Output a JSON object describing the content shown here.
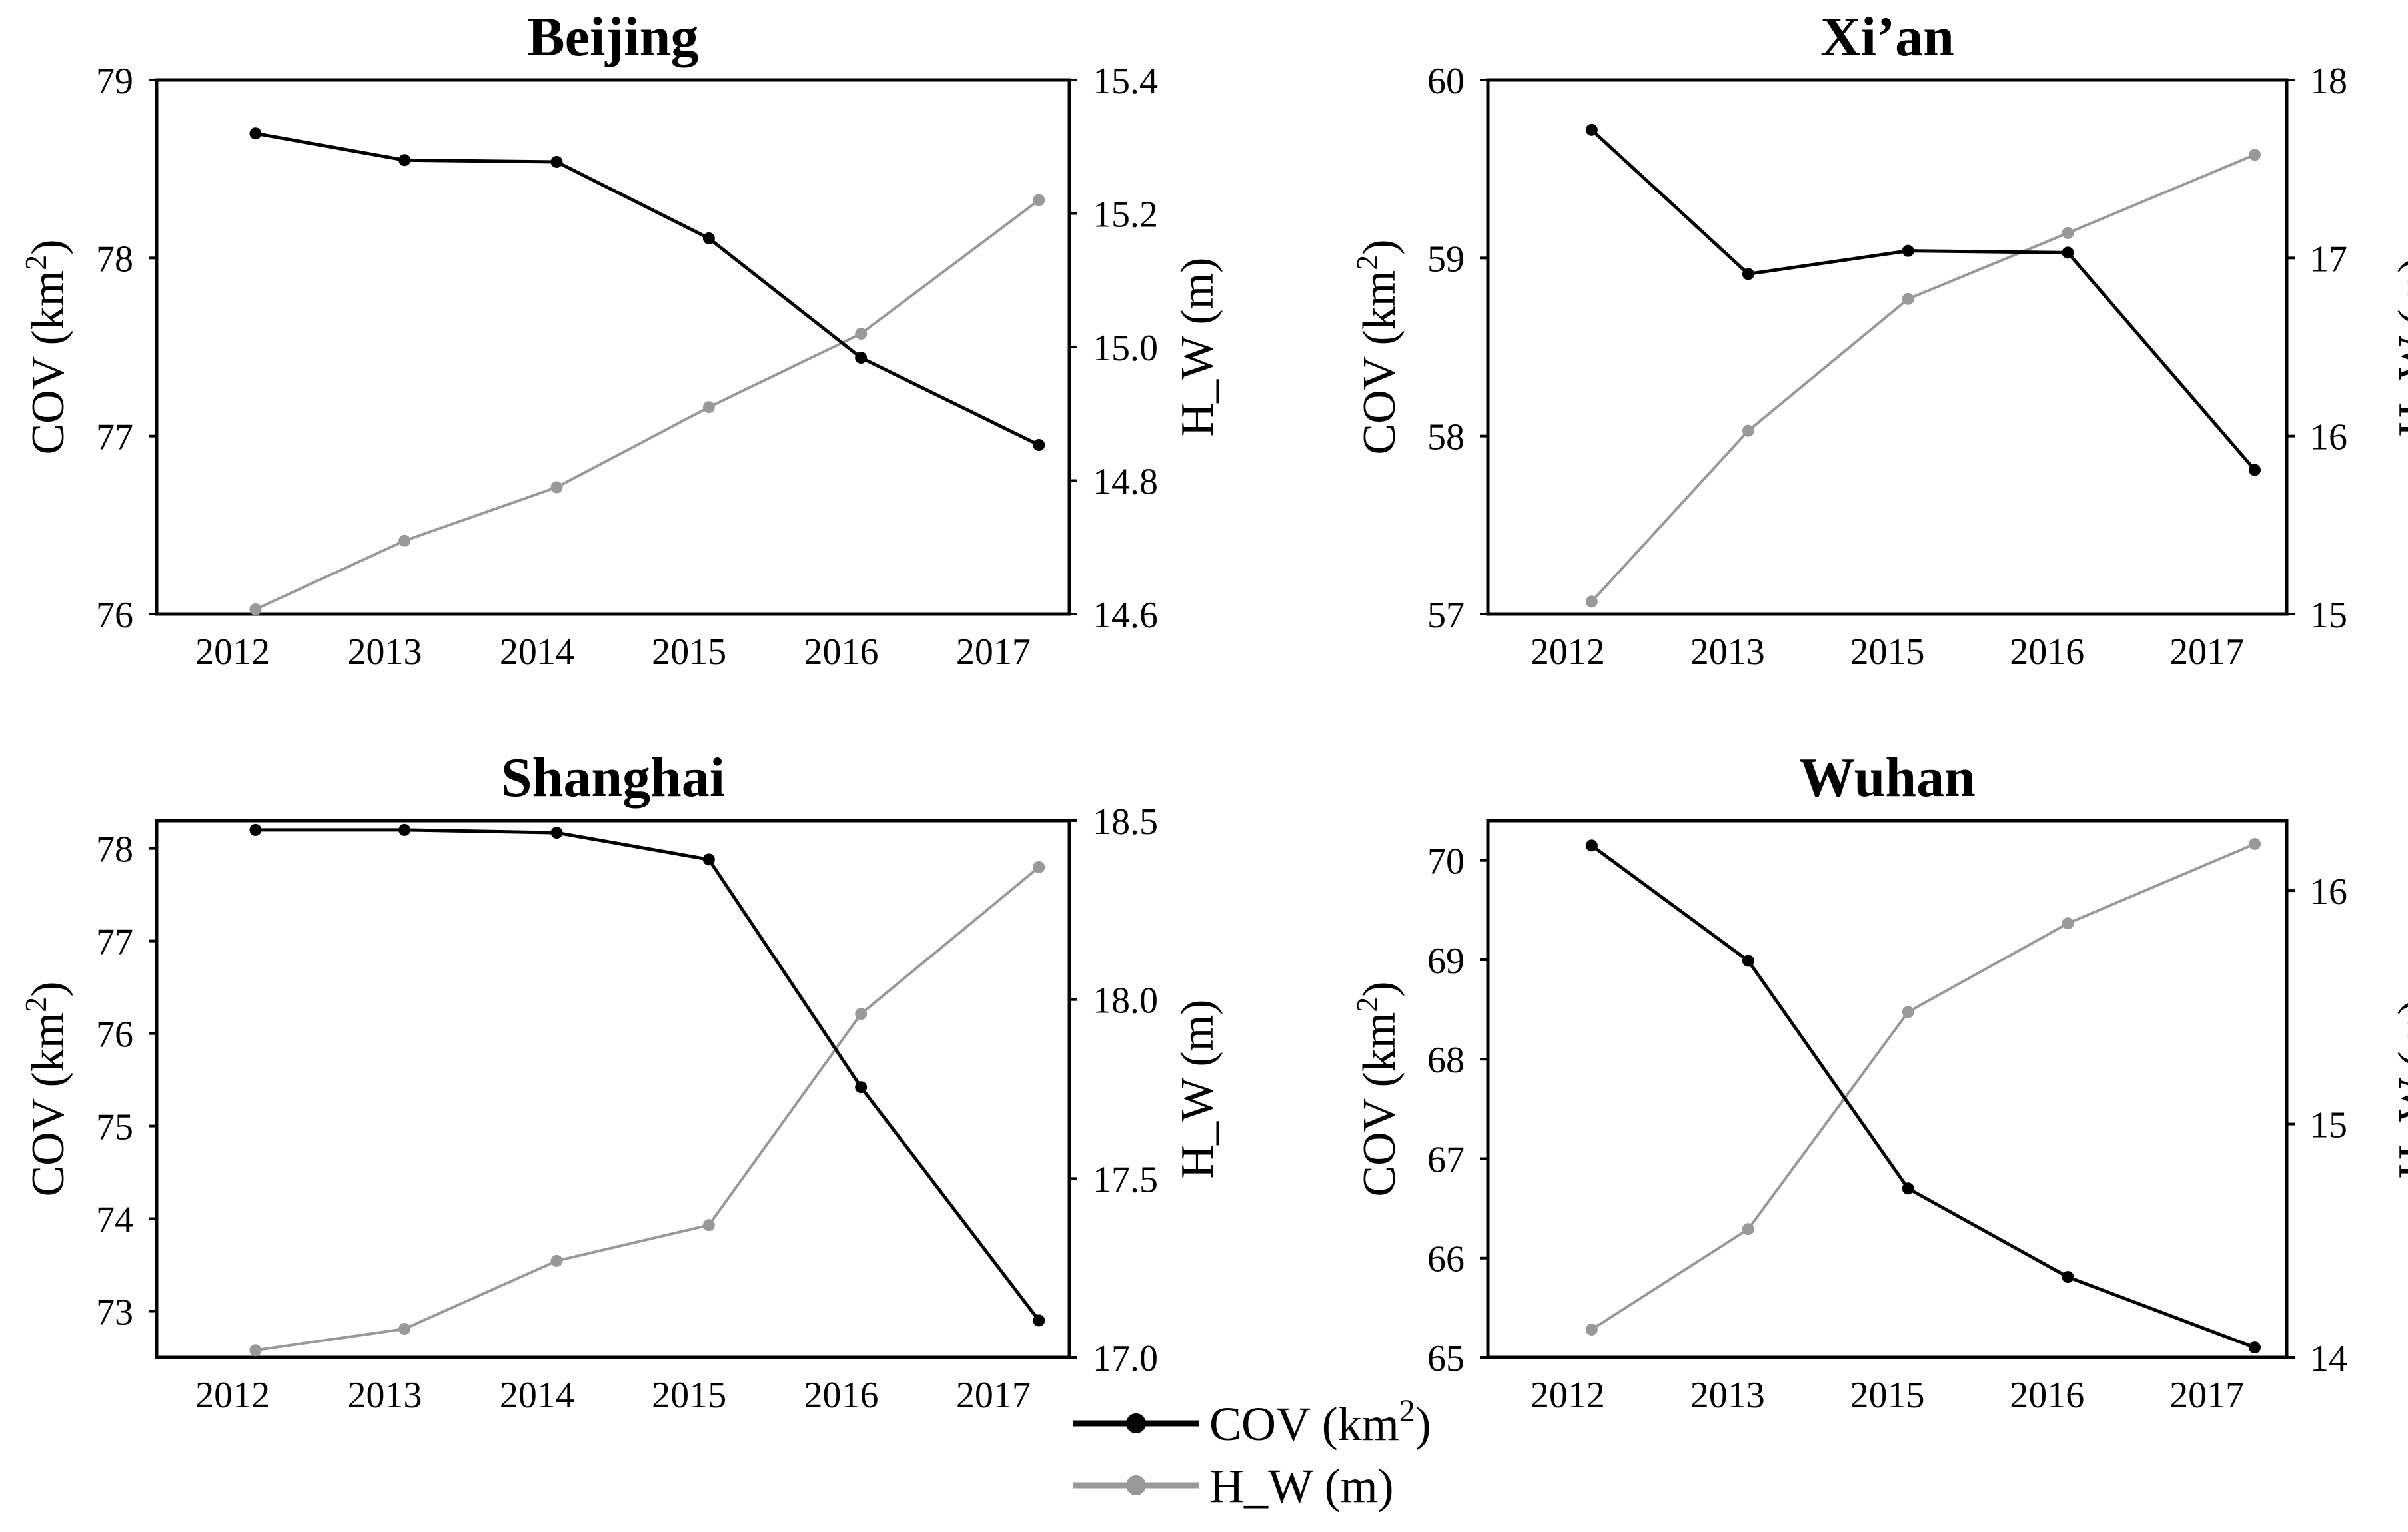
{
  "legend": {
    "items": [
      {
        "label": "COV (km",
        "sup": "2",
        "tail": ")",
        "color": "#000000"
      },
      {
        "label": "H_W (m)",
        "sup": "",
        "tail": "",
        "color": "#999999"
      }
    ]
  },
  "colors": {
    "cov": "#000000",
    "hw": "#999999"
  },
  "chart_data": [
    {
      "type": "line",
      "title": "Beijing",
      "categories": [
        "2012",
        "2013",
        "2014",
        "2015",
        "2016",
        "2017"
      ],
      "ylabel_left": "COV (km",
      "ylabel_left_sup": "2",
      "ylabel_left_tail": ")",
      "ylabel_right": "H_W (m)",
      "ylim_left": [
        76,
        79
      ],
      "yticks_left": [
        "76",
        "77",
        "78",
        "79"
      ],
      "ylim_right": [
        14.6,
        15.4
      ],
      "yticks_right": [
        "14.6",
        "14.8",
        "15.0",
        "15.2",
        "15.4"
      ],
      "series": [
        {
          "name": "COV (km2)",
          "axis": "left",
          "x": [
            0.15,
            1.13,
            2.13,
            3.13,
            4.13,
            5.3
          ],
          "values": [
            78.7,
            78.55,
            78.54,
            78.11,
            77.44,
            76.95
          ]
        },
        {
          "name": "H_W (m)",
          "axis": "right",
          "x": [
            0.15,
            1.13,
            2.13,
            3.13,
            4.13,
            5.3
          ],
          "values": [
            14.607,
            14.71,
            14.79,
            14.91,
            15.02,
            15.22
          ]
        }
      ]
    },
    {
      "type": "line",
      "title": "Xi’an",
      "categories": [
        "2012",
        "2013",
        "2015",
        "2016",
        "2017"
      ],
      "ylabel_left": "COV (km",
      "ylabel_left_sup": "2",
      "ylabel_left_tail": ")",
      "ylabel_right": "H_W (m)",
      "ylim_left": [
        57,
        60
      ],
      "yticks_left": [
        "57",
        "58",
        "59",
        "60"
      ],
      "ylim_right": [
        15,
        18
      ],
      "yticks_right": [
        "15",
        "16",
        "17",
        "18"
      ],
      "series": [
        {
          "name": "COV (km2)",
          "axis": "left",
          "x": [
            0.15,
            1.13,
            2.13,
            3.13,
            4.3
          ],
          "values": [
            59.72,
            58.91,
            59.04,
            59.03,
            57.81
          ]
        },
        {
          "name": "H_W (m)",
          "axis": "right",
          "x": [
            0.15,
            1.13,
            2.13,
            3.13,
            4.3
          ],
          "values": [
            15.07,
            16.03,
            16.77,
            17.14,
            17.58
          ]
        }
      ]
    },
    {
      "type": "line",
      "title": "Shanghai",
      "categories": [
        "2012",
        "2013",
        "2014",
        "2015",
        "2016",
        "2017"
      ],
      "ylabel_left": "COV (km",
      "ylabel_left_sup": "2",
      "ylabel_left_tail": ")",
      "ylabel_right": "H_W (m)",
      "ylim_left": [
        72.5,
        78.3
      ],
      "yticks_left": [
        "73",
        "74",
        "75",
        "76",
        "77",
        "78"
      ],
      "ylim_right": [
        17.0,
        18.5
      ],
      "yticks_right": [
        "17.0",
        "17.5",
        "18.0",
        "18.5"
      ],
      "series": [
        {
          "name": "COV (km2)",
          "axis": "left",
          "x": [
            0.15,
            1.13,
            2.13,
            3.13,
            4.13,
            5.3
          ],
          "values": [
            78.2,
            78.2,
            78.17,
            77.88,
            75.42,
            72.9
          ]
        },
        {
          "name": "H_W (m)",
          "axis": "right",
          "x": [
            0.15,
            1.13,
            2.13,
            3.13,
            4.13,
            5.3
          ],
          "values": [
            17.02,
            17.08,
            17.27,
            17.37,
            17.96,
            18.37
          ]
        }
      ]
    },
    {
      "type": "line",
      "title": "Wuhan",
      "categories": [
        "2012",
        "2013",
        "2015",
        "2016",
        "2017"
      ],
      "ylabel_left": "COV (km",
      "ylabel_left_sup": "2",
      "ylabel_left_tail": ")",
      "ylabel_right": "H_W (m)",
      "ylim_left": [
        65,
        70.4
      ],
      "yticks_left": [
        "65",
        "66",
        "67",
        "68",
        "69",
        "70"
      ],
      "ylim_right": [
        14,
        16.3
      ],
      "yticks_right": [
        "14",
        "15",
        "16"
      ],
      "series": [
        {
          "name": "COV (km2)",
          "axis": "left",
          "x": [
            0.15,
            1.13,
            2.13,
            3.13,
            4.3
          ],
          "values": [
            70.15,
            68.99,
            66.7,
            65.81,
            65.1
          ]
        },
        {
          "name": "H_W (m)",
          "axis": "right",
          "x": [
            0.15,
            1.13,
            2.13,
            3.13,
            4.3
          ],
          "values": [
            14.12,
            14.55,
            15.48,
            15.86,
            16.2
          ]
        }
      ]
    }
  ]
}
